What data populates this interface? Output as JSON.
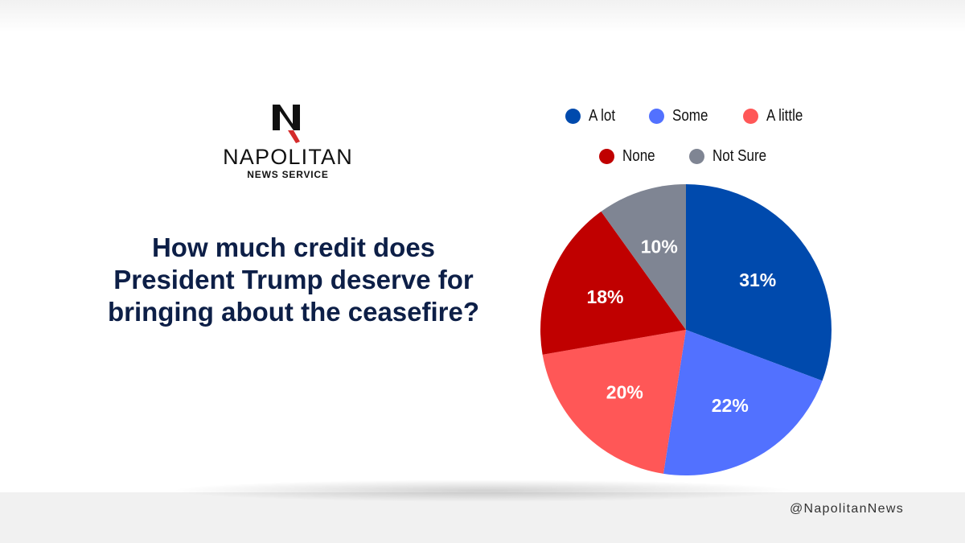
{
  "brand": {
    "name": "NAPOLITAN",
    "subtitle": "NEWS SERVICE",
    "handle": "@NapolitanNews",
    "logo_colors": {
      "mark": "#111111",
      "accent": "#d42b2b"
    }
  },
  "question": "How much credit does President Trump deserve for bringing about the ceasefire?",
  "chart_data": {
    "type": "pie",
    "labels": [
      "A lot",
      "Some",
      "A little",
      "None",
      "Not Sure"
    ],
    "values": [
      31,
      22,
      20,
      18,
      10
    ],
    "value_labels": [
      "31%",
      "22%",
      "20%",
      "18%",
      "10%"
    ],
    "colors": [
      "#004aad",
      "#5271ff",
      "#ff5757",
      "#c00000",
      "#7f8593"
    ],
    "legend_position": "top",
    "start": "12 o'clock, clockwise"
  }
}
